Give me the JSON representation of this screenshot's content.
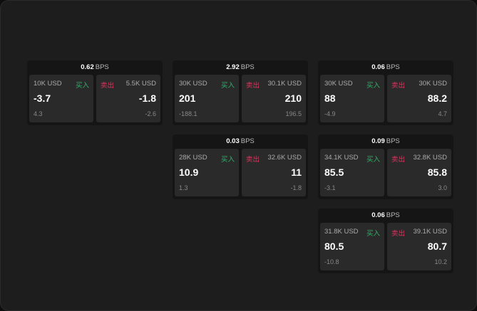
{
  "bps_unit": "BPS",
  "buy_label": "买入",
  "sell_label": "卖出",
  "colors": {
    "buy": "#2fb36a",
    "sell": "#e0325e"
  },
  "widgets": [
    {
      "spread": "0.62",
      "bid": {
        "size": "10K USD",
        "price": "-3.7",
        "change": "4.3"
      },
      "ask": {
        "size": "5.5K USD",
        "price": "-1.8",
        "change": "-2.6"
      }
    },
    {
      "spread": "2.92",
      "bid": {
        "size": "30K USD",
        "price": "201",
        "change": "-188.1"
      },
      "ask": {
        "size": "30.1K USD",
        "price": "210",
        "change": "196.5"
      }
    },
    {
      "spread": "0.06",
      "bid": {
        "size": "30K USD",
        "price": "88",
        "change": "-4.9"
      },
      "ask": {
        "size": "30K USD",
        "price": "88.2",
        "change": "4.7"
      }
    },
    {
      "spread": "0.03",
      "bid": {
        "size": "28K USD",
        "price": "10.9",
        "change": "1.3"
      },
      "ask": {
        "size": "32.6K USD",
        "price": "11",
        "change": "-1.8"
      }
    },
    {
      "spread": "0.09",
      "bid": {
        "size": "34.1K USD",
        "price": "85.5",
        "change": "-3.1"
      },
      "ask": {
        "size": "32.8K USD",
        "price": "85.8",
        "change": "3.0"
      }
    },
    {
      "spread": "0.06",
      "bid": {
        "size": "31.8K USD",
        "price": "80.5",
        "change": "-10.8"
      },
      "ask": {
        "size": "39.1K USD",
        "price": "80.7",
        "change": "10.2"
      }
    }
  ]
}
